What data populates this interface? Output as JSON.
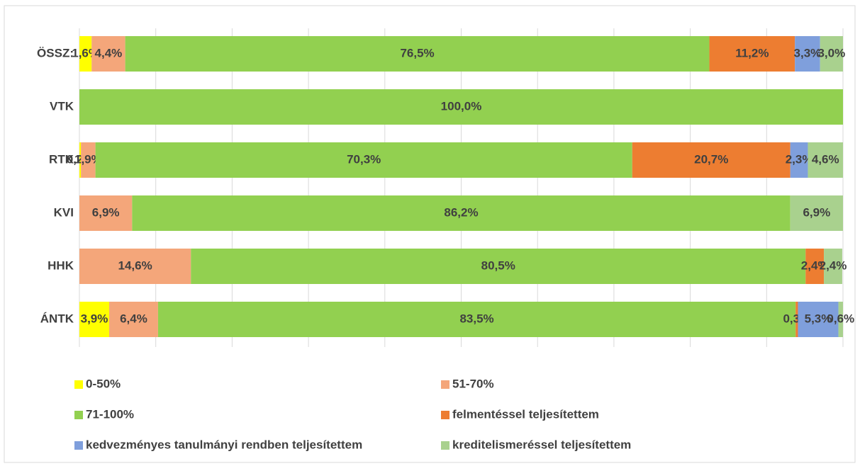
{
  "chart_data": {
    "type": "stacked-bar-horizontal",
    "categories": [
      "ÖSSZ:",
      "VTK",
      "RTK",
      "KVI",
      "HHK",
      "ÁNTK"
    ],
    "xlim": [
      0,
      100
    ],
    "xticks": [
      0,
      10,
      20,
      30,
      40,
      50,
      60,
      70,
      80,
      90,
      100
    ],
    "grid": true,
    "series": [
      {
        "name": "0-50%",
        "color": "#ffff00",
        "values": [
          1.6,
          0,
          0.2,
          0,
          0,
          3.9
        ],
        "value_labels": [
          "1,6%",
          null,
          "0,2%",
          null,
          null,
          "3,9%"
        ]
      },
      {
        "name": "51-70%",
        "color": "#f4a67a",
        "values": [
          4.4,
          0,
          1.9,
          6.9,
          14.6,
          6.4
        ],
        "value_labels": [
          "4,4%",
          null,
          "1,9%",
          "6,9%",
          "14,6%",
          "6,4%"
        ]
      },
      {
        "name": "71-100%",
        "color": "#92d050",
        "values": [
          76.5,
          100,
          70.3,
          86.2,
          80.5,
          83.5
        ],
        "value_labels": [
          "76,5%",
          "100,0%",
          "70,3%",
          "86,2%",
          "80,5%",
          "83,5%"
        ]
      },
      {
        "name": "felmentéssel teljesítettem",
        "color": "#ed7d31",
        "values": [
          11.2,
          0,
          20.7,
          0,
          2.4,
          0.3
        ],
        "value_labels": [
          "11,2%",
          null,
          "20,7%",
          null,
          "2,4%",
          "0,3%"
        ]
      },
      {
        "name": "kedvezményes tanulmányi rendben teljesítettem",
        "color": "#7f9fdc",
        "values": [
          3.3,
          0,
          2.3,
          0,
          0,
          5.3
        ],
        "value_labels": [
          "3,3%",
          null,
          "2,3%",
          null,
          null,
          "5,3%"
        ]
      },
      {
        "name": "kreditelismeréssel teljesítettem",
        "color": "#a9d18e",
        "values": [
          3.0,
          0,
          4.6,
          6.9,
          2.4,
          0.6
        ],
        "value_labels": [
          "3,0%",
          null,
          "4,6%",
          "6,9%",
          "2,4%",
          "0,6%"
        ]
      }
    ]
  }
}
